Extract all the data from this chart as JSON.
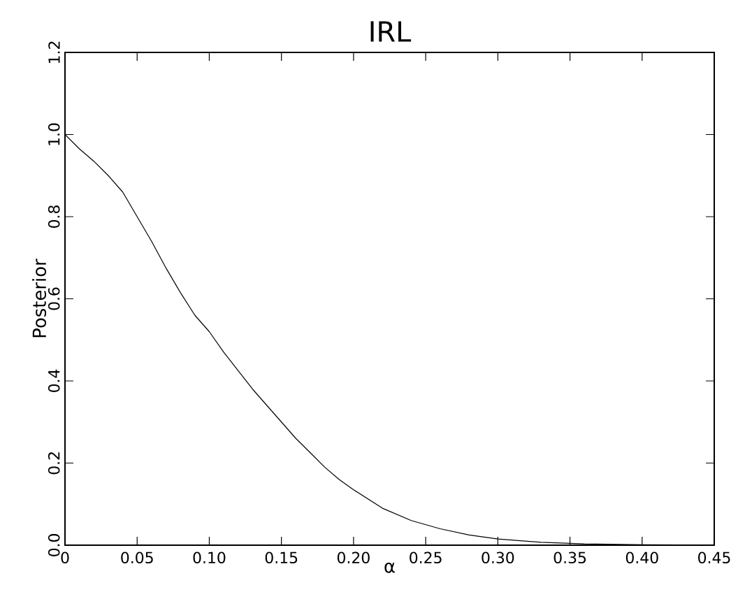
{
  "chart_data": {
    "type": "line",
    "title": "IRL",
    "xlabel": "α",
    "ylabel": "Posterior",
    "x": [
      0,
      0.01,
      0.02,
      0.03,
      0.04,
      0.05,
      0.06,
      0.07,
      0.08,
      0.09,
      0.1,
      0.11,
      0.12,
      0.13,
      0.14,
      0.15,
      0.16,
      0.17,
      0.18,
      0.19,
      0.2,
      0.22,
      0.24,
      0.26,
      0.28,
      0.3,
      0.33,
      0.36,
      0.4,
      0.45
    ],
    "series": [
      {
        "color": "#000000",
        "values": [
          1.0,
          0.965,
          0.935,
          0.9,
          0.86,
          0.8,
          0.74,
          0.675,
          0.615,
          0.56,
          0.52,
          0.47,
          0.425,
          0.38,
          0.34,
          0.3,
          0.26,
          0.225,
          0.19,
          0.16,
          0.135,
          0.09,
          0.06,
          0.04,
          0.025,
          0.015,
          0.007,
          0.003,
          0.001,
          0.0
        ]
      }
    ],
    "xlim": [
      0,
      0.45
    ],
    "ylim": [
      0,
      1.2
    ],
    "xticks": [
      {
        "value": 0,
        "label": "0"
      },
      {
        "value": 0.05,
        "label": "0.05"
      },
      {
        "value": 0.1,
        "label": "0.10"
      },
      {
        "value": 0.15,
        "label": "0.15"
      },
      {
        "value": 0.2,
        "label": "0.20"
      },
      {
        "value": 0.25,
        "label": "0.25"
      },
      {
        "value": 0.3,
        "label": "0.30"
      },
      {
        "value": 0.35,
        "label": "0.35"
      },
      {
        "value": 0.4,
        "label": "0.40"
      },
      {
        "value": 0.45,
        "label": "0.45"
      }
    ],
    "yticks": [
      {
        "value": 0,
        "label": "0.0"
      },
      {
        "value": 0.2,
        "label": "0.2"
      },
      {
        "value": 0.4,
        "label": "0.4"
      },
      {
        "value": 0.6,
        "label": "0.6"
      },
      {
        "value": 0.8,
        "label": "0.8"
      },
      {
        "value": 1.0,
        "label": "1.0"
      },
      {
        "value": 1.2,
        "label": "1.2"
      }
    ],
    "grid": false,
    "marker": "none",
    "line_style": "solid"
  }
}
